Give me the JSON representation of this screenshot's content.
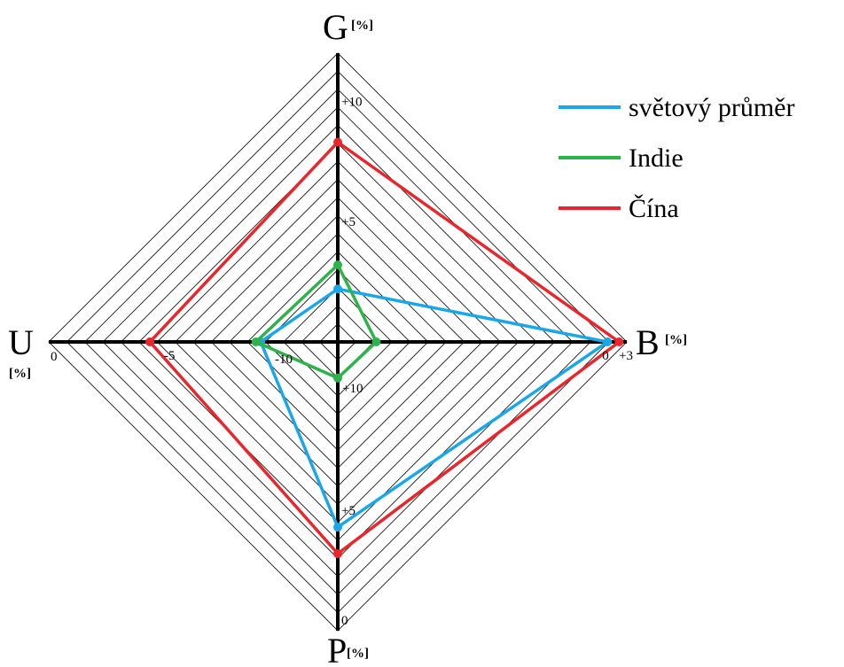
{
  "chart_data": {
    "type": "radar",
    "axes": [
      {
        "key": "G",
        "label": "G",
        "unit": "[%]",
        "direction": "up",
        "ticks": [
          {
            "label": "+10",
            "at": 10
          },
          {
            "label": "+5",
            "at": 5
          }
        ],
        "center_label": "",
        "end_label": ""
      },
      {
        "key": "B",
        "label": "B",
        "unit": "[%]",
        "direction": "right",
        "ticks": [
          {
            "label": "0",
            "at": 0
          }
        ],
        "center_label": "",
        "end_label": "+3"
      },
      {
        "key": "P",
        "label": "P",
        "unit": "[%]",
        "direction": "down",
        "ticks": [
          {
            "label": "+5",
            "at": 5
          }
        ],
        "center_label": "+10",
        "end_label": "0"
      },
      {
        "key": "U",
        "label": "U",
        "unit": "[%]",
        "direction": "left",
        "ticks": [
          {
            "label": "-5",
            "at": -5
          }
        ],
        "center_label": "-10",
        "end_label": "0"
      }
    ],
    "axis_scale": {
      "G": {
        "center": 0,
        "end": 12
      },
      "B": {
        "center": -7,
        "end": 0.5
      },
      "P": {
        "center": 12,
        "end": 0
      },
      "U": {
        "center": -12,
        "end": 0
      }
    },
    "series": [
      {
        "name": "světový průměr",
        "color": "#1AA7E8",
        "values": {
          "G": 2.2,
          "B": 0,
          "P": 4.3,
          "U": -8.8
        }
      },
      {
        "name": "Indie",
        "color": "#2DB34A",
        "values": {
          "G": 3.2,
          "B": -6,
          "P": 10.5,
          "U": -8.6
        }
      },
      {
        "name": "Čína",
        "color": "#E8262C",
        "values": {
          "G": 8.3,
          "B": 0.3,
          "P": 3.2,
          "U": -4.2
        }
      }
    ],
    "grid": true,
    "grid_rings": 16,
    "legend_position": "top-right"
  }
}
